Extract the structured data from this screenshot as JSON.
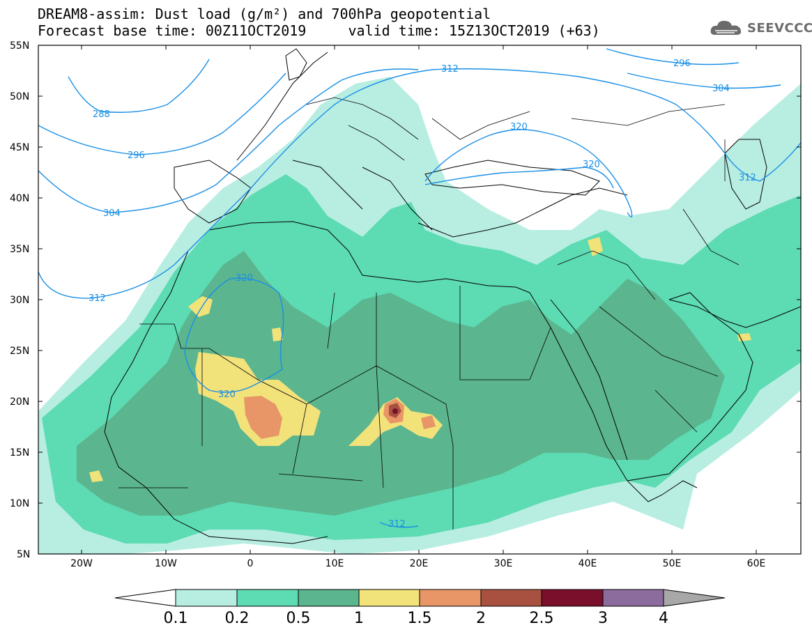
{
  "header": {
    "title_line1": "DREAM8-assim: Dust load (g/m²) and 700hPa geopotential",
    "title_line2": "Forecast base time: 00Z11OCT2019     valid time: 15Z13OCT2019 (+63)"
  },
  "logo": {
    "text": "SEEVCCC",
    "icon": "cloud-logo-icon"
  },
  "map": {
    "lat_labels": [
      "55N",
      "50N",
      "45N",
      "40N",
      "35N",
      "30N",
      "25N",
      "20N",
      "15N",
      "10N",
      "5N"
    ],
    "lon_labels": [
      "20W",
      "10W",
      "0",
      "10E",
      "20E",
      "30E",
      "40E",
      "50E",
      "60E"
    ],
    "contour_labels": [
      "288",
      "296",
      "304",
      "312",
      "320",
      "320",
      "320",
      "312",
      "296",
      "304",
      "312",
      "312",
      "320"
    ],
    "colors": {
      "land_outline": "#000000",
      "contour": "#1a8fe6"
    }
  },
  "colorbar": {
    "labels": [
      "0.1",
      "0.2",
      "0.5",
      "1",
      "1.5",
      "2",
      "2.5",
      "3",
      "4"
    ],
    "colors": [
      "#b8eee2",
      "#5ddbb2",
      "#5bb58f",
      "#f2e27a",
      "#e89568",
      "#a85140",
      "#7a0f2c",
      "#8c6c9c",
      "#a8a8a8"
    ]
  }
}
